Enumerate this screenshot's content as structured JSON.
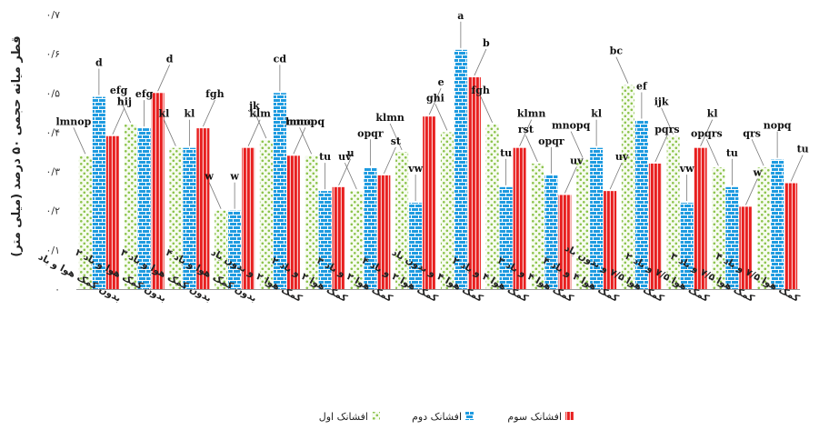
{
  "chart_data": {
    "type": "bar",
    "ylabel": "قطر میانه حجمی ۵۰ درصد (میلی متر)",
    "ylim": [
      0,
      0.7
    ],
    "yticks": [
      {
        "v": 0,
        "t": "۰"
      },
      {
        "v": 0.1,
        "t": "۰/۱"
      },
      {
        "v": 0.2,
        "t": "۰/۲"
      },
      {
        "v": 0.3,
        "t": "۰/۳"
      },
      {
        "v": 0.4,
        "t": "۰/۴"
      },
      {
        "v": 0.5,
        "t": "۰/۵"
      },
      {
        "v": 0.6,
        "t": "۰/۶"
      },
      {
        "v": 0.7,
        "t": "۰/۷"
      }
    ],
    "categories": [
      "بدون کمک هوا و باد",
      "بدون کمک هوا و باد ۲",
      "بدون کمک هوا و باد ۳",
      "بدون کمک هوا و باد ۴",
      "کمک هوا ۲ و بدون باد",
      "کمک هوا ۲ و باد ۲",
      "کمک هوا ۲ و باد ۳",
      "کمک هوا ۲ و باد ۴",
      "کمک هوا ۴ و بدون باد",
      "کمک هوا ۴ و باد ۲",
      "کمک هوا ۴ و باد ۳",
      "کمک هوا ۴ و باد ۴",
      "کمک هوا ۷/۵ و بدون باد",
      "کمک هوا ۷/۵ و باد ۲",
      "کمک هوا ۷/۵ و باد ۳",
      "کمک هوا ۷/۵ و باد ۴"
    ],
    "series": [
      {
        "name": "افشانک اول",
        "values": [
          0.34,
          0.42,
          0.36,
          0.2,
          0.38,
          0.34,
          0.25,
          0.35,
          0.4,
          0.42,
          0.32,
          0.33,
          0.52,
          0.39,
          0.31,
          0.31
        ],
        "labels": [
          "lmnop",
          "efg",
          "kl",
          "w",
          "jk",
          "lmno",
          "uv",
          "klmn",
          "ghi",
          "fgh",
          "rst",
          "mnopq",
          "bc",
          "ijk",
          "opqrs",
          "qrs"
        ]
      },
      {
        "name": "افشانک دوم",
        "values": [
          0.49,
          0.41,
          0.36,
          0.2,
          0.5,
          0.25,
          0.31,
          0.22,
          0.61,
          0.26,
          0.29,
          0.36,
          0.43,
          0.22,
          0.26,
          0.33
        ],
        "labels": [
          "d",
          "efg",
          "kl",
          "w",
          "cd",
          "tu",
          "opqr",
          "vw",
          "a",
          "tu",
          "opqr",
          "kl",
          "ef",
          "vw",
          "tu",
          "nopq"
        ]
      },
      {
        "name": "افشانک سوم",
        "values": [
          0.39,
          0.5,
          0.41,
          0.36,
          0.34,
          0.26,
          0.29,
          0.44,
          0.54,
          0.36,
          0.24,
          0.25,
          0.32,
          0.36,
          0.21,
          0.27
        ],
        "labels": [
          "hij",
          "d",
          "fgh",
          "klm",
          "mnopq",
          "u",
          "st",
          "e",
          "b",
          "klmn",
          "uv",
          "uv",
          "pqrs",
          "kl",
          "w",
          "tu"
        ]
      }
    ],
    "legend_position": "bottom",
    "grid": false
  },
  "colors": {
    "series1_dots": "#8bc34a",
    "series2_fill": "#1e9be0",
    "series2_lines": "#ffffff",
    "series3_fill": "#e81f1f",
    "series3_lines": "#ffffff",
    "leader": "#777777",
    "axis": "#999999"
  }
}
